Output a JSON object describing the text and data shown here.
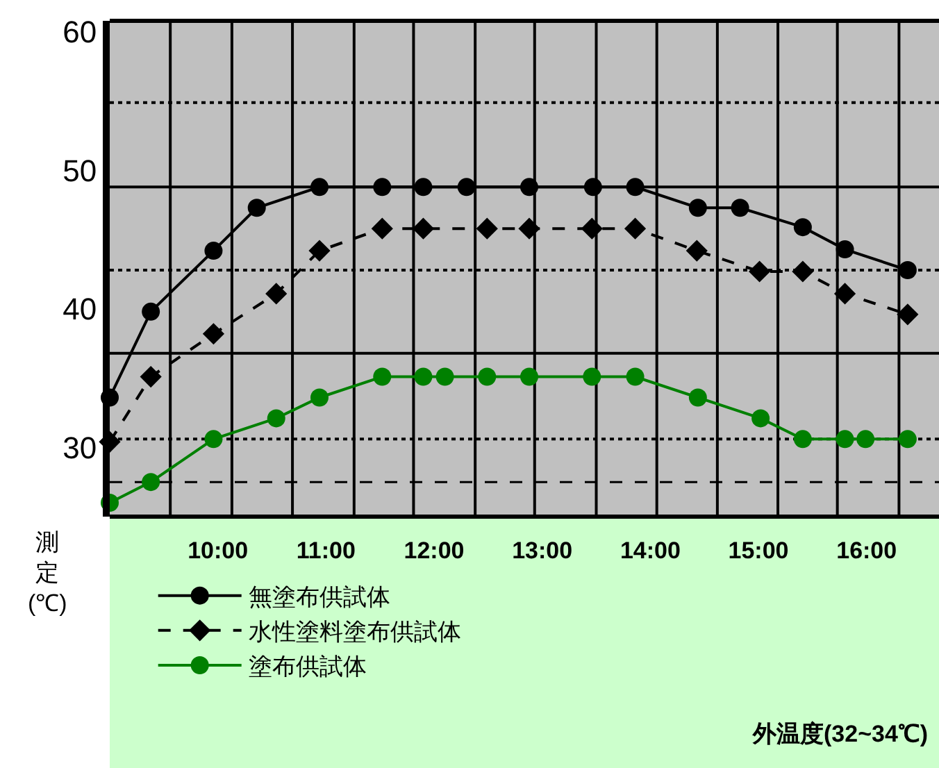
{
  "chart_data": {
    "type": "line",
    "ylabel": "測定(℃)",
    "xlim": [
      9.0,
      16.67
    ],
    "ylim": [
      25,
      60.8
    ],
    "xticks": [
      {
        "value": 10,
        "label": "10:00"
      },
      {
        "value": 11,
        "label": "11:00"
      },
      {
        "value": 12,
        "label": "12:00"
      },
      {
        "value": 13,
        "label": "13:00"
      },
      {
        "value": 14,
        "label": "14:00"
      },
      {
        "value": 15,
        "label": "15:00"
      },
      {
        "value": 16,
        "label": "16:00"
      }
    ],
    "yticks": [
      30,
      40,
      50,
      60
    ],
    "legend": "bottom left",
    "ref_lines": [
      {
        "axis": "x",
        "value": 9.56,
        "label": null,
        "line_style": "solid",
        "color": "#000000"
      },
      {
        "axis": "x",
        "value": 10.13,
        "label": null,
        "line_style": "solid",
        "color": "#000000"
      },
      {
        "axis": "x",
        "value": 10.69,
        "label": null,
        "line_style": "solid",
        "color": "#000000"
      },
      {
        "axis": "x",
        "value": 11.26,
        "label": null,
        "line_style": "solid",
        "color": "#000000"
      },
      {
        "axis": "x",
        "value": 11.81,
        "label": null,
        "line_style": "solid",
        "color": "#000000"
      },
      {
        "axis": "x",
        "value": 12.38,
        "label": null,
        "line_style": "solid",
        "color": "#000000"
      },
      {
        "axis": "x",
        "value": 12.93,
        "label": null,
        "line_style": "solid",
        "color": "#000000"
      },
      {
        "axis": "x",
        "value": 13.5,
        "label": null,
        "line_style": "solid",
        "color": "#000000"
      },
      {
        "axis": "x",
        "value": 14.06,
        "label": null,
        "line_style": "solid",
        "color": "#000000"
      },
      {
        "axis": "x",
        "value": 14.62,
        "label": null,
        "line_style": "solid",
        "color": "#000000"
      },
      {
        "axis": "x",
        "value": 15.18,
        "label": null,
        "line_style": "solid",
        "color": "#000000"
      },
      {
        "axis": "x",
        "value": 15.73,
        "label": null,
        "line_style": "solid",
        "color": "#000000"
      },
      {
        "axis": "x",
        "value": 16.3,
        "label": null,
        "line_style": "solid",
        "color": "#000000"
      },
      {
        "axis": "y",
        "value": 54.9,
        "label": null,
        "line_style": "dotted",
        "color": "#000000"
      },
      {
        "axis": "y",
        "value": 48.8,
        "label": null,
        "line_style": "solid",
        "color": "#000000"
      },
      {
        "axis": "y",
        "value": 42.8,
        "label": null,
        "line_style": "dotted",
        "color": "#000000"
      },
      {
        "axis": "y",
        "value": 36.8,
        "label": null,
        "line_style": "solid",
        "color": "#000000"
      },
      {
        "axis": "y",
        "value": 30.6,
        "label": null,
        "line_style": "dotted",
        "color": "#000000"
      },
      {
        "axis": "y",
        "value": 27.5,
        "label": null,
        "line_style": "dashed",
        "color": "#000000"
      }
    ],
    "annotations": [
      "外温度(32~34℃)"
    ],
    "series": [
      {
        "name": "無塗布供試体",
        "color": "#000000",
        "marker": "circle",
        "line_style": "solid",
        "x": [
          9.0,
          9.38,
          9.96,
          10.36,
          10.94,
          11.52,
          11.9,
          12.3,
          12.88,
          13.47,
          13.86,
          14.44,
          14.83,
          15.41,
          15.8,
          16.38
        ],
        "values": [
          33.6,
          39.8,
          44.2,
          47.3,
          48.8,
          48.8,
          48.8,
          48.8,
          48.8,
          48.8,
          48.8,
          47.3,
          47.3,
          45.9,
          44.3,
          42.8
        ]
      },
      {
        "name": "水性塗料塗布供試体",
        "color": "#000000",
        "marker": "diamond",
        "line_style": "dashed",
        "x": [
          9.0,
          9.38,
          9.96,
          10.54,
          10.94,
          11.52,
          11.9,
          12.49,
          12.88,
          13.46,
          13.86,
          14.43,
          15.01,
          15.41,
          15.8,
          16.38
        ],
        "values": [
          30.4,
          35.1,
          38.2,
          41.1,
          44.2,
          45.8,
          45.8,
          45.8,
          45.8,
          45.8,
          45.8,
          44.2,
          42.7,
          42.7,
          41.1,
          39.6
        ]
      },
      {
        "name": "塗布供試体",
        "color": "#008000",
        "marker": "circle",
        "line_style": "solid",
        "x": [
          9.0,
          9.38,
          9.96,
          10.54,
          10.94,
          11.52,
          11.9,
          12.1,
          12.49,
          12.88,
          13.46,
          13.86,
          14.44,
          15.02,
          15.41,
          15.8,
          15.99,
          16.38
        ],
        "values": [
          26.0,
          27.5,
          30.6,
          32.1,
          33.6,
          35.1,
          35.1,
          35.1,
          35.1,
          35.1,
          35.1,
          35.1,
          33.6,
          32.1,
          30.6,
          30.6,
          30.6,
          30.6
        ]
      }
    ]
  }
}
